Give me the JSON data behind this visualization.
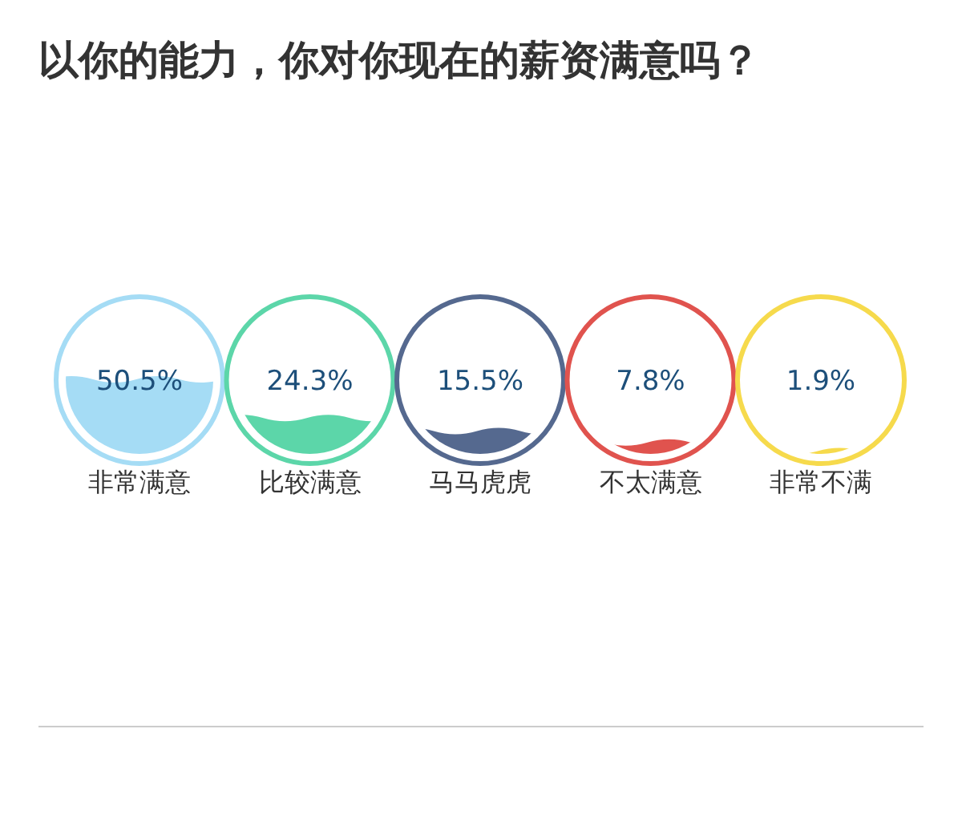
{
  "chart_data": {
    "type": "other",
    "title": "以你的能力，你对你现在的薪资满意吗？",
    "categories": [
      "非常满意",
      "比较满意",
      "马马虎虎",
      "不太满意",
      "非常不满"
    ],
    "values": [
      50.5,
      24.3,
      15.5,
      7.8,
      1.9
    ],
    "value_labels": [
      "50.5%",
      "24.3%",
      "15.5%",
      "7.8%",
      "1.9%"
    ],
    "colors": [
      "#a5dcf5",
      "#5cd6a9",
      "#55698f",
      "#e0534e",
      "#f6da4c"
    ]
  }
}
